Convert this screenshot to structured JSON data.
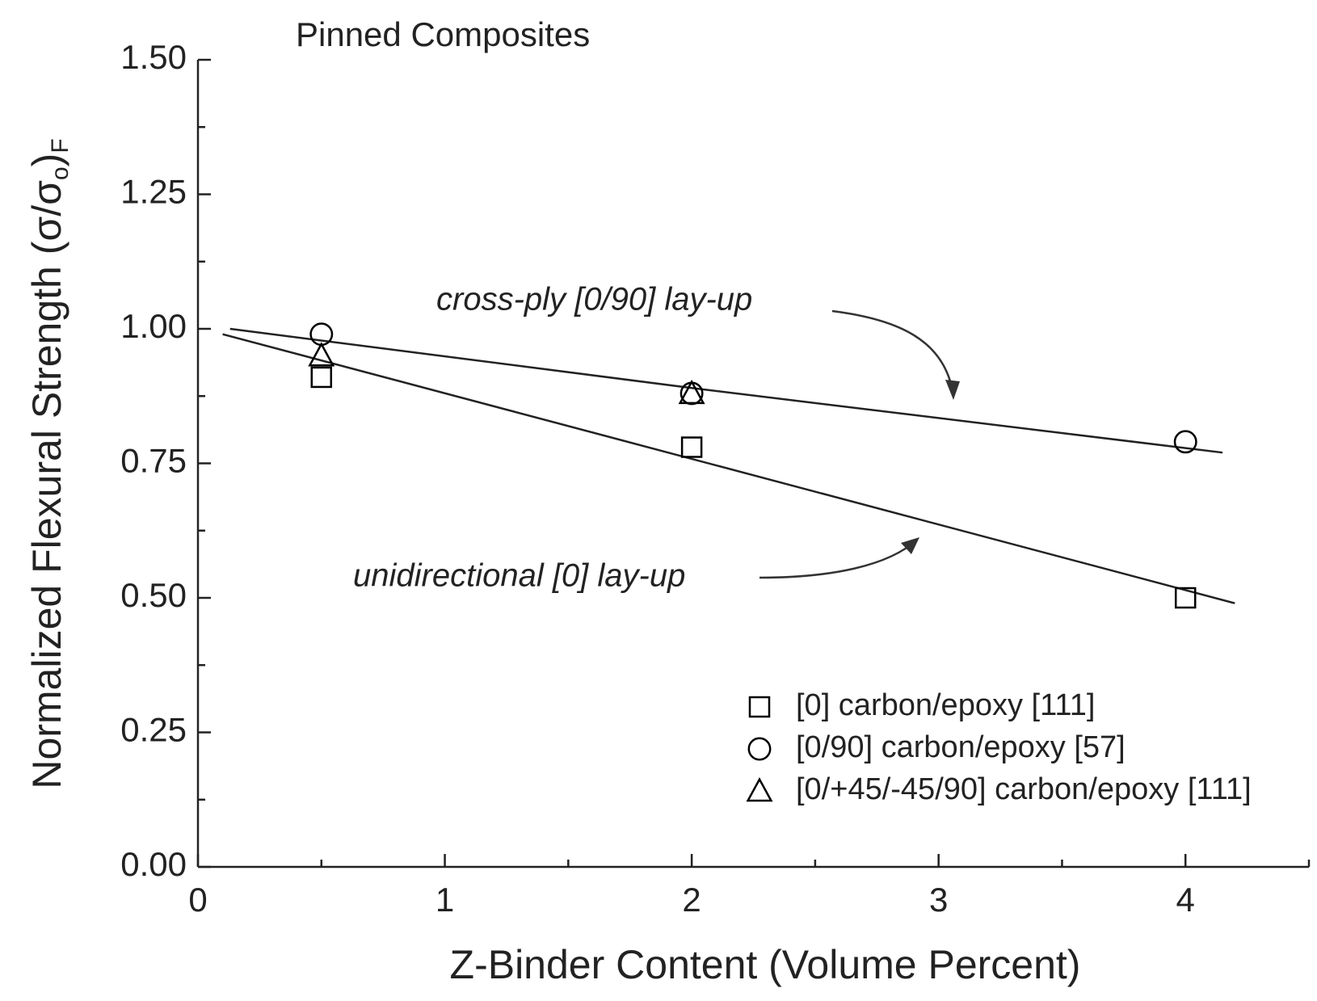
{
  "chart_data": {
    "type": "scatter",
    "title": "Pinned Composites",
    "x_label": "Z-Binder Content (Volume Percent)",
    "y_label": [
      "Normalized Flexural Strength (σ/σ",
      "o",
      ")",
      "F"
    ],
    "xlim": [
      0,
      4.5
    ],
    "ylim": [
      0,
      1.5
    ],
    "xticks": [
      0,
      1,
      2,
      3,
      4
    ],
    "xminorticks": [
      0.5,
      1.5,
      2.5,
      3.5,
      4.5
    ],
    "yticks": [
      {
        "value": 0,
        "label": "0.00"
      },
      {
        "value": 0.25,
        "label": "0.25"
      },
      {
        "value": 0.5,
        "label": "0.50"
      },
      {
        "value": 0.75,
        "label": "0.75"
      },
      {
        "value": 1,
        "label": "1.00"
      },
      {
        "value": 1.25,
        "label": "1.25"
      },
      {
        "value": 1.5,
        "label": "1.50"
      }
    ],
    "yminorticks": [
      0.125,
      0.375,
      0.625,
      0.875,
      1.125,
      1.375
    ],
    "series": [
      {
        "name": "[0] carbon/epoxy [111]",
        "marker": "square",
        "color": "#000000",
        "x": [
          0.5,
          2,
          4
        ],
        "values": [
          0.91,
          0.78,
          0.5
        ]
      },
      {
        "name": "[0/90] carbon/epoxy [57]",
        "marker": "circle",
        "color": "#000000",
        "x": [
          0.5,
          2,
          4
        ],
        "values": [
          0.99,
          0.88,
          0.79
        ]
      },
      {
        "name": "[0/+45/-45/90] carbon/epoxy [111]",
        "marker": "triangle",
        "color": "#000000",
        "x": [
          0.5,
          2
        ],
        "values": [
          0.95,
          0.88
        ]
      }
    ],
    "fits": [
      {
        "x": [
          0.13,
          2,
          4.15
        ],
        "values": [
          1.0,
          0.89,
          0.77
        ]
      },
      {
        "x": [
          0.1,
          4.2
        ],
        "values": [
          0.99,
          0.49
        ]
      }
    ],
    "annotations": [
      "cross-ply [0/90] lay-up",
      "unidirectional [0] lay-up"
    ]
  }
}
